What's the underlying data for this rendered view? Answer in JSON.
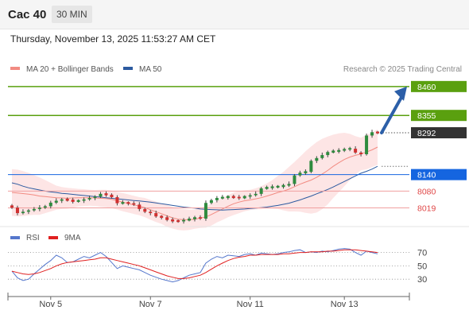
{
  "header": {
    "instrument": "Cac 40",
    "timeframe": "30 MIN",
    "timestamp": "Thursday, November 13, 2025 11:53:27 AM CET"
  },
  "legend": {
    "items": [
      {
        "label": "MA 20 + Bollinger Bands",
        "color": "#f28b82"
      },
      {
        "label": "MA 50",
        "color": "#2c5aa0"
      }
    ],
    "credit": "Research © 2025 Trading Central"
  },
  "chart_data": [
    {
      "type": "candlestick",
      "x_labels": [
        "Nov 5",
        "Nov 7",
        "Nov 11",
        "Nov 13"
      ],
      "x_label_positions": [
        7,
        25,
        43,
        60
      ],
      "n_bars": 67,
      "ylim": [
        7980,
        8500
      ],
      "close": [
        8020,
        8000,
        8005,
        8010,
        8015,
        8020,
        8025,
        8038,
        8045,
        8050,
        8047,
        8043,
        8045,
        8050,
        8055,
        8060,
        8070,
        8067,
        8058,
        8036,
        8038,
        8036,
        8031,
        8015,
        8005,
        8000,
        7988,
        7985,
        7975,
        7972,
        7970,
        7975,
        7978,
        7985,
        7980,
        8037,
        8047,
        8055,
        8057,
        8060,
        8057,
        8056,
        8060,
        8065,
        8070,
        8090,
        8093,
        8095,
        8097,
        8100,
        8106,
        8137,
        8147,
        8150,
        8190,
        8200,
        8211,
        8222,
        8225,
        8227,
        8233,
        8234,
        8220,
        8214,
        8282,
        8294,
        8292
      ],
      "levels": [
        {
          "value": 8460,
          "label": "8460",
          "kind": "resistance",
          "color": "#5aa00f"
        },
        {
          "value": 8355,
          "label": "8355",
          "kind": "resistance",
          "color": "#5aa00f"
        },
        {
          "value": 8292,
          "label": "8292",
          "kind": "last price",
          "color": "#333333"
        },
        {
          "value": 8140,
          "label": "8140",
          "kind": "pivot",
          "color": "#1565e0"
        },
        {
          "value": 8080,
          "label": "8080",
          "kind": "support",
          "color": "#e04848"
        },
        {
          "value": 8019,
          "label": "8019",
          "kind": "support",
          "color": "#e04848"
        }
      ],
      "ma20": [
        8075,
        8073,
        8071,
        8069,
        8066,
        8062,
        8060,
        8058,
        8056,
        8055,
        8054,
        8055,
        8056,
        8056,
        8056,
        8055,
        8054,
        8053,
        8050,
        8045,
        8040,
        8035,
        8030,
        8025,
        8020,
        8012,
        8005,
        7998,
        7990,
        7983,
        7978,
        7976,
        7976,
        7978,
        7982,
        7986,
        7995,
        8005,
        8015,
        8025,
        8034,
        8040,
        8045,
        8048,
        8052,
        8056,
        8062,
        8068,
        8075,
        8080,
        8087,
        8096,
        8105,
        8113,
        8120,
        8130,
        8142,
        8155,
        8170,
        8183,
        8195,
        8204,
        8210,
        8215,
        8222,
        8230,
        8240
      ],
      "bb_upper": [
        8160,
        8158,
        8153,
        8146,
        8138,
        8130,
        8120,
        8110,
        8100,
        8095,
        8092,
        8090,
        8088,
        8087,
        8085,
        8084,
        8085,
        8085,
        8082,
        8077,
        8073,
        8068,
        8063,
        8058,
        8055,
        8048,
        8042,
        8035,
        8030,
        8022,
        8017,
        8015,
        8013,
        8013,
        8018,
        8025,
        8035,
        8044,
        8055,
        8065,
        8075,
        8080,
        8083,
        8085,
        8090,
        8098,
        8108,
        8120,
        8135,
        8150,
        8168,
        8186,
        8205,
        8225,
        8242,
        8258,
        8270,
        8278,
        8285,
        8290,
        8292,
        8288,
        8280,
        8274,
        8285,
        8293,
        8304
      ],
      "bb_lower": [
        7990,
        7988,
        7989,
        7992,
        7994,
        7994,
        8000,
        8006,
        8012,
        8015,
        8016,
        8020,
        8024,
        8025,
        8027,
        8026,
        8023,
        8021,
        8018,
        8013,
        8007,
        8002,
        7997,
        7992,
        7985,
        7976,
        7968,
        7961,
        7950,
        7944,
        7939,
        7937,
        7939,
        7943,
        7946,
        7947,
        7955,
        7966,
        7975,
        7985,
        7993,
        8000,
        8007,
        8011,
        8014,
        8014,
        8016,
        8016,
        8015,
        8010,
        8006,
        8006,
        8005,
        8001,
        7998,
        8002,
        8014,
        8032,
        8055,
        8076,
        8098,
        8120,
        8140,
        8156,
        8159,
        8167,
        8176
      ],
      "ma50": [
        8110,
        8105,
        8098,
        8092,
        8088,
        8084,
        8080,
        8077,
        8075,
        8072,
        8070,
        8068,
        8066,
        8064,
        8062,
        8060,
        8058,
        8056,
        8054,
        8052,
        8050,
        8048,
        8046,
        8044,
        8042,
        8040,
        8037,
        8034,
        8031,
        8028,
        8025,
        8022,
        8020,
        8018,
        8015,
        8014,
        8013,
        8012,
        8011,
        8012,
        8013,
        8014,
        8015,
        8017,
        8018,
        8020,
        8022,
        8025,
        8028,
        8032,
        8036,
        8042,
        8048,
        8055,
        8062,
        8070,
        8078,
        8086,
        8095,
        8105,
        8115,
        8125,
        8135,
        8145,
        8152,
        8160,
        8170
      ]
    },
    {
      "type": "line",
      "legend": [
        {
          "name": "RSI",
          "color": "#5577cc"
        },
        {
          "name": "9MA",
          "color": "#e02020"
        }
      ],
      "ylim": [
        10,
        85
      ],
      "y_ticks": [
        70,
        50,
        30
      ],
      "series": [
        {
          "name": "RSI",
          "color": "#5577cc",
          "values": [
            42,
            32,
            28,
            30,
            38,
            45,
            52,
            58,
            66,
            62,
            55,
            56,
            60,
            64,
            62,
            66,
            70,
            64,
            55,
            46,
            50,
            48,
            46,
            44,
            40,
            36,
            33,
            30,
            28,
            26,
            28,
            32,
            36,
            38,
            40,
            54,
            60,
            64,
            62,
            66,
            65,
            64,
            67,
            68,
            66,
            69,
            68,
            67,
            68,
            70,
            71,
            73,
            74,
            70,
            71,
            70,
            72,
            71,
            73,
            75,
            76,
            75,
            70,
            66,
            72,
            70,
            68
          ]
        },
        {
          "name": "9MA",
          "color": "#e02020",
          "values": [
            42,
            40,
            38,
            37,
            38,
            40,
            43,
            46,
            50,
            53,
            55,
            56,
            57,
            58,
            59,
            60,
            62,
            62,
            60,
            58,
            56,
            54,
            52,
            50,
            47,
            44,
            41,
            38,
            35,
            33,
            31,
            31,
            32,
            34,
            36,
            40,
            45,
            50,
            54,
            58,
            61,
            63,
            64,
            66,
            66,
            67,
            67,
            67,
            67,
            68,
            68,
            69,
            70,
            70,
            71,
            71,
            71,
            72,
            72,
            73,
            74,
            74,
            74,
            73,
            72,
            71,
            70
          ]
        }
      ]
    }
  ]
}
